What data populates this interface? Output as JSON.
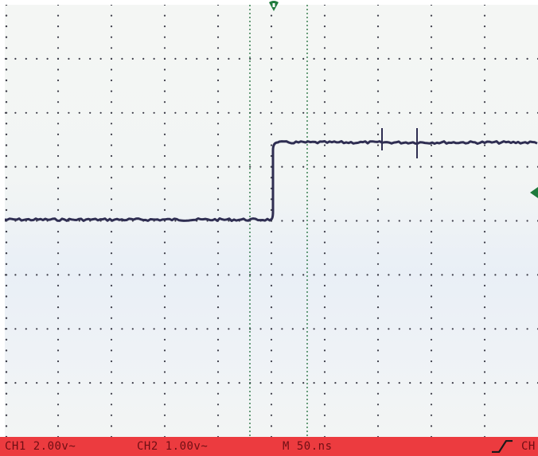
{
  "status": {
    "ch1": "CH1 2.00v~",
    "ch2": "CH2 1.00v~",
    "timebase": "M 50.ns",
    "trigger_source": "CH"
  },
  "icons": {
    "trigger_slope": "rising-edge-icon",
    "trigger_position": "trigger-position-marker-icon",
    "trigger_level": "trigger-level-marker-icon"
  },
  "colors": {
    "status_bar": "#ec3b3f",
    "status_text": "#6f0f14",
    "trace": "#2f2e52",
    "grid": "#3a3a46",
    "cursor": "#1f6e3a",
    "marker": "#1f7a3c"
  }
}
